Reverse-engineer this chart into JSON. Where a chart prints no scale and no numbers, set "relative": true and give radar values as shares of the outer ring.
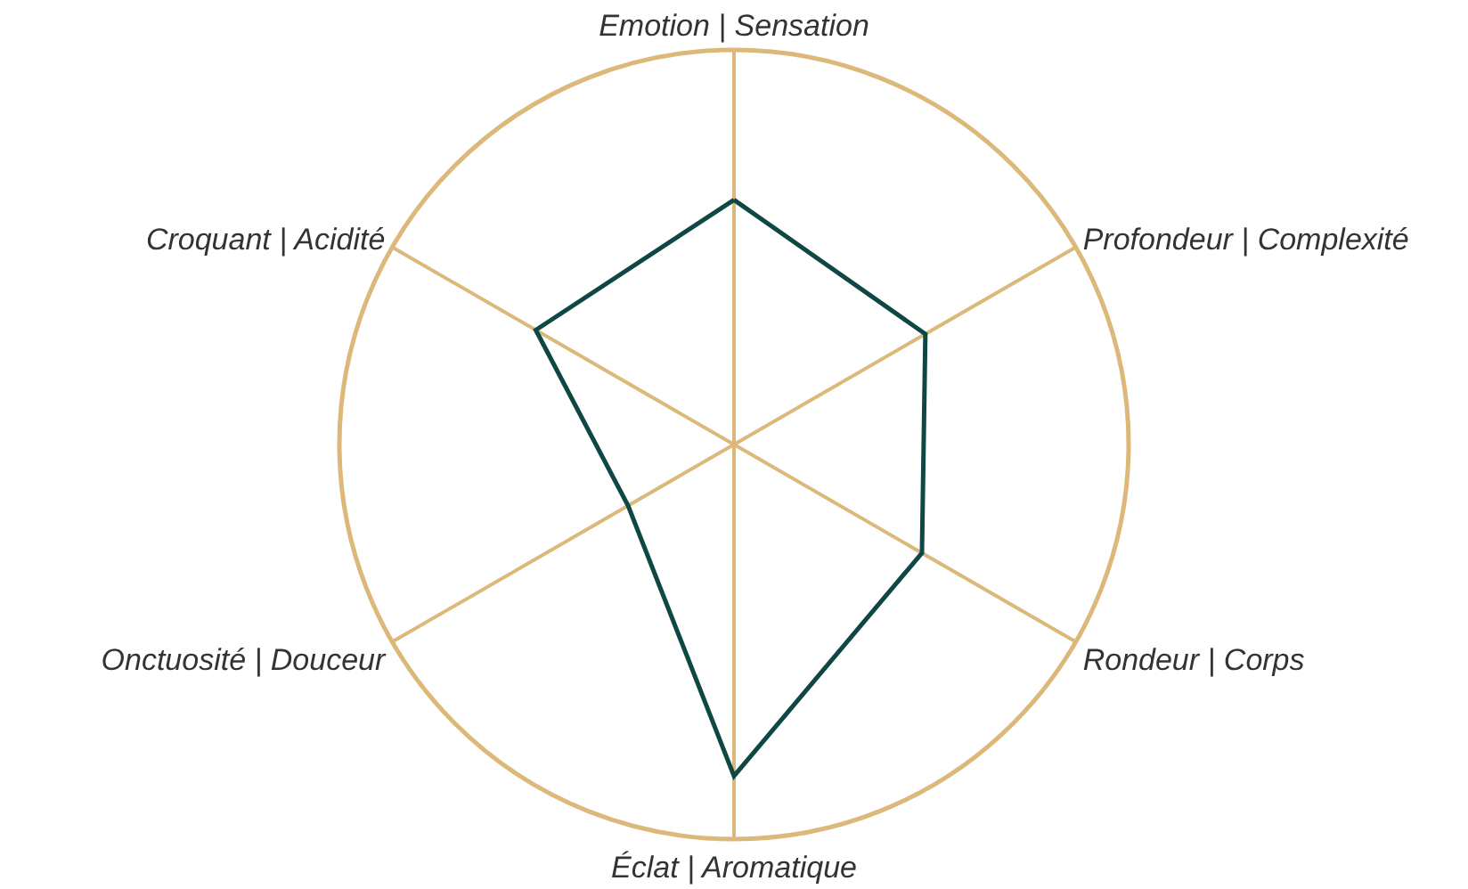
{
  "chart_data": {
    "type": "radar",
    "relative": true,
    "categories": [
      "Emotion | Sensation",
      "Profondeur | Complexité",
      "Rondeur | Corps",
      "Éclat | Aromatique",
      "Onctuosité | Douceur",
      "Croquant | Acidité"
    ],
    "series": [
      {
        "color": "#0e4744",
        "values": [
          0.62,
          0.56,
          0.55,
          0.84,
          0.31,
          0.58
        ]
      }
    ],
    "grid": true,
    "marker": "none",
    "line_style": "solid"
  }
}
